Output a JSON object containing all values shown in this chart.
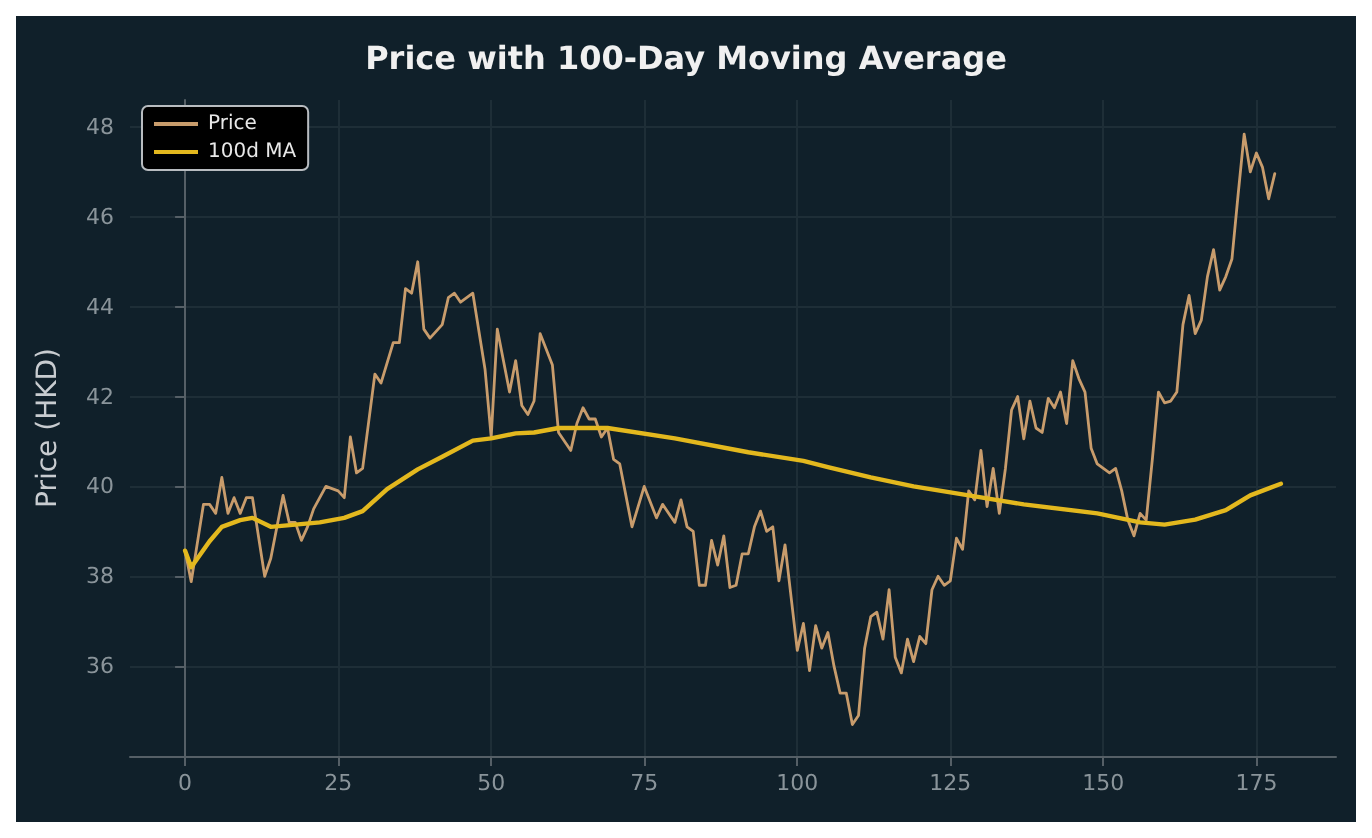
{
  "chart_data": {
    "type": "line",
    "title": "Price with 100-Day Moving Average",
    "ylabel": "Price (HKD)",
    "xlim": [
      -9,
      188
    ],
    "ylim": [
      34,
      48.6
    ],
    "xticks": [
      0,
      25,
      50,
      75,
      100,
      125,
      150,
      175
    ],
    "yticks": [
      36,
      38,
      40,
      42,
      44,
      46,
      48
    ],
    "grid": true,
    "legend": "top left",
    "marker": "none",
    "line_style": "solid",
    "series": [
      {
        "name": "Price",
        "color": "#c89c6c",
        "x": [
          0,
          1,
          3,
          4,
          5,
          6,
          7,
          8,
          9,
          10,
          11,
          13,
          14,
          16,
          17,
          18,
          19,
          20,
          21,
          23,
          25,
          26,
          27,
          28,
          29,
          31,
          32,
          34,
          35,
          36,
          37,
          38,
          39,
          40,
          42,
          43,
          44,
          45,
          47,
          49,
          50,
          51,
          53,
          54,
          55,
          56,
          57,
          58,
          60,
          61,
          63,
          64,
          65,
          66,
          67,
          68,
          69,
          70,
          71,
          73,
          75,
          77,
          78,
          80,
          81,
          82,
          83,
          84,
          85,
          86,
          87,
          88,
          89,
          90,
          91,
          92,
          93,
          94,
          95,
          96,
          97,
          98,
          100,
          101,
          102,
          103,
          104,
          105,
          106,
          107,
          108,
          109,
          110,
          111,
          112,
          113,
          114,
          115,
          116,
          117,
          118,
          119,
          120,
          121,
          122,
          123,
          124,
          125,
          126,
          127,
          128,
          129,
          130,
          131,
          132,
          133,
          134,
          135,
          136,
          137,
          138,
          139,
          140,
          141,
          142,
          143,
          144,
          145,
          146,
          147,
          148,
          149,
          150,
          151,
          152,
          153,
          154,
          155,
          156,
          157,
          158,
          159,
          160,
          161,
          162,
          163,
          164,
          165,
          166,
          167,
          168,
          169,
          170,
          171,
          172,
          173,
          174,
          175,
          176,
          177,
          178
        ],
        "values": [
          38.57,
          37.88,
          39.6,
          39.6,
          39.4,
          40.2,
          39.4,
          39.75,
          39.4,
          39.75,
          39.75,
          38.0,
          38.4,
          39.8,
          39.2,
          39.2,
          38.8,
          39.1,
          39.5,
          40.0,
          39.9,
          39.75,
          41.1,
          40.3,
          40.4,
          42.5,
          42.3,
          43.2,
          43.2,
          44.4,
          44.3,
          45.0,
          43.5,
          43.3,
          43.6,
          44.2,
          44.3,
          44.1,
          44.3,
          42.6,
          41.1,
          43.5,
          42.1,
          42.8,
          41.8,
          41.6,
          41.9,
          43.4,
          42.7,
          41.2,
          40.8,
          41.4,
          41.75,
          41.5,
          41.5,
          41.1,
          41.3,
          40.6,
          40.5,
          39.1,
          40.0,
          39.3,
          39.6,
          39.2,
          39.7,
          39.1,
          39.0,
          37.8,
          37.8,
          38.8,
          38.25,
          38.9,
          37.75,
          37.8,
          38.5,
          38.5,
          39.1,
          39.45,
          39.0,
          39.1,
          37.9,
          38.7,
          36.35,
          36.95,
          35.9,
          36.9,
          36.4,
          36.75,
          36.0,
          35.4,
          35.4,
          34.7,
          34.9,
          36.4,
          37.1,
          37.2,
          36.6,
          37.7,
          36.2,
          35.85,
          36.6,
          36.1,
          36.66,
          36.5,
          37.7,
          38.0,
          37.8,
          37.9,
          38.85,
          38.6,
          39.9,
          39.7,
          40.8,
          39.55,
          40.4,
          39.4,
          40.4,
          41.7,
          42.0,
          41.06,
          41.9,
          41.3,
          41.2,
          41.96,
          41.75,
          42.1,
          41.4,
          42.8,
          42.4,
          42.1,
          40.85,
          40.5,
          40.4,
          40.3,
          40.4,
          39.9,
          39.25,
          38.9,
          39.4,
          39.25,
          40.6,
          42.1,
          41.86,
          41.9,
          42.1,
          43.6,
          44.25,
          43.4,
          43.7,
          44.67,
          45.27,
          44.37,
          44.67,
          45.06,
          46.48,
          47.84,
          47.0,
          47.42,
          47.1,
          46.4,
          46.96
        ]
      },
      {
        "name": "100d MA",
        "color": "#e3b81e",
        "x": [
          0,
          1,
          4,
          6,
          9,
          11,
          14,
          18,
          22,
          26,
          29,
          33,
          38,
          42,
          47,
          50,
          54,
          57,
          61,
          69,
          80,
          92,
          101,
          105,
          112,
          119,
          128,
          137,
          149,
          156,
          160,
          165,
          170,
          174,
          179
        ],
        "values": [
          38.57,
          38.2,
          38.78,
          39.1,
          39.25,
          39.3,
          39.1,
          39.15,
          39.2,
          39.3,
          39.45,
          39.94,
          40.38,
          40.66,
          41.02,
          41.07,
          41.18,
          41.2,
          41.3,
          41.3,
          41.07,
          40.76,
          40.57,
          40.43,
          40.2,
          40.0,
          39.8,
          39.6,
          39.4,
          39.2,
          39.15,
          39.26,
          39.47,
          39.8,
          40.06
        ]
      }
    ]
  }
}
